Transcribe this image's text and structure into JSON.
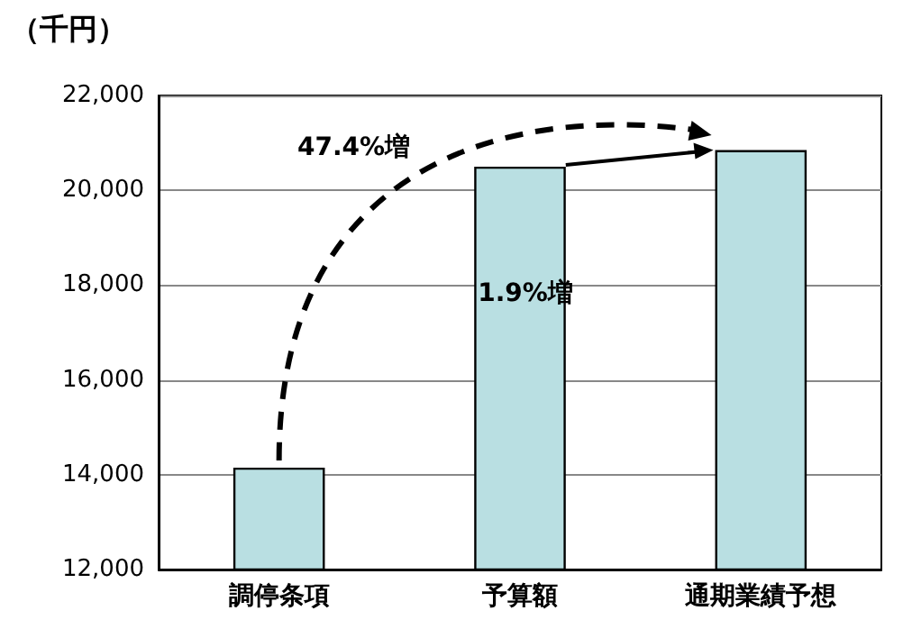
{
  "chart_data": {
    "type": "bar",
    "ylabel": "（千円）",
    "categories": [
      "調停条項",
      "予算額",
      "通期業績予想"
    ],
    "values": [
      14150,
      20500,
      20850
    ],
    "color": "#b9dfe2",
    "ylim": [
      12000,
      22000
    ],
    "yticks": [
      {
        "value": 12000,
        "label": "12,000"
      },
      {
        "value": 14000,
        "label": "14,000"
      },
      {
        "value": 16000,
        "label": "16,000"
      },
      {
        "value": 18000,
        "label": "18,000"
      },
      {
        "value": 20000,
        "label": "20,000"
      },
      {
        "value": 22000,
        "label": "22,000"
      }
    ],
    "grid": "y",
    "annotations": [
      "47.4%増",
      "1.9%増"
    ]
  }
}
